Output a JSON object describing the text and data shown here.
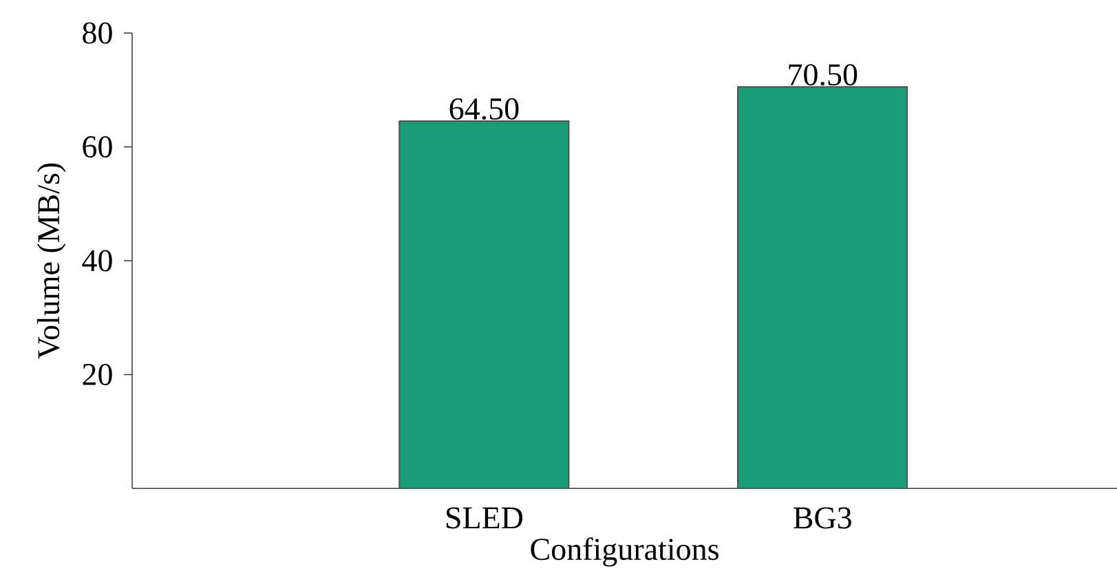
{
  "chart_data": {
    "type": "bar",
    "xlabel": "Configurations",
    "ylabel": "Volume (MB/s)",
    "categories": [
      "SLED",
      "BG3"
    ],
    "values": [
      64.5,
      70.5
    ],
    "value_labels": [
      "64.50",
      "70.50"
    ],
    "color": "#1b9e77",
    "ylim": [
      0,
      80
    ],
    "yticks": [
      20,
      40,
      60,
      80
    ]
  }
}
